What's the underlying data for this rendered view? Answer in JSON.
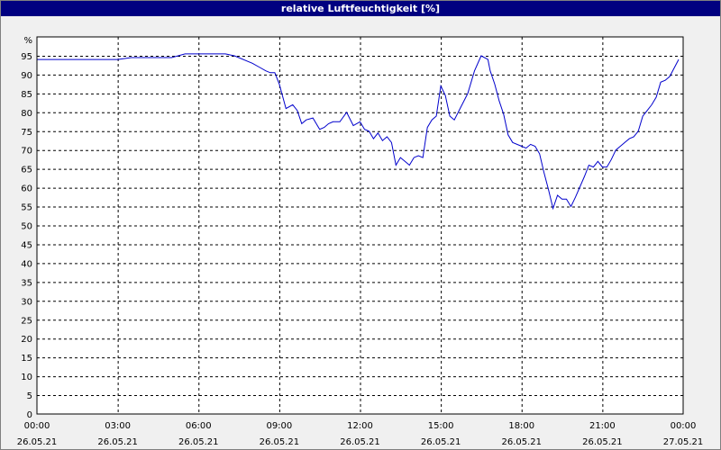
{
  "window": {
    "title": "relative Luftfeuchtigkeit [%]"
  },
  "colors": {
    "title_bg": "#000080",
    "plot_bg": "#ffffff",
    "grid": "#000000",
    "line": "#0000cc"
  },
  "chart_data": {
    "type": "line",
    "title": "relative Luftfeuchtigkeit [%]",
    "ylabel_unit": "%",
    "ylim": [
      0,
      100
    ],
    "xlim": [
      "26.05.21 00:00",
      "27.05.21 00:00"
    ],
    "grid": true,
    "y_ticks": [
      "0",
      "5",
      "10",
      "15",
      "20",
      "25",
      "30",
      "35",
      "40",
      "45",
      "50",
      "55",
      "60",
      "65",
      "70",
      "75",
      "80",
      "85",
      "90",
      "95"
    ],
    "x_ticks": [
      {
        "time": "00:00",
        "date": "26.05.21"
      },
      {
        "time": "03:00",
        "date": "26.05.21"
      },
      {
        "time": "06:00",
        "date": "26.05.21"
      },
      {
        "time": "09:00",
        "date": "26.05.21"
      },
      {
        "time": "12:00",
        "date": "26.05.21"
      },
      {
        "time": "15:00",
        "date": "26.05.21"
      },
      {
        "time": "18:00",
        "date": "26.05.21"
      },
      {
        "time": "21:00",
        "date": "26.05.21"
      },
      {
        "time": "00:00",
        "date": "27.05.21"
      }
    ],
    "series": [
      {
        "x": [
          "00:00",
          "01:00",
          "02:00",
          "03:00",
          "03:30",
          "05:00",
          "05:30",
          "06:00",
          "07:00",
          "07:20",
          "08:00",
          "08:15",
          "08:30",
          "08:40",
          "08:50",
          "09:00",
          "09:15",
          "09:30",
          "09:40",
          "09:50",
          "10:00",
          "10:15",
          "10:30",
          "10:40",
          "10:50",
          "11:00",
          "11:15",
          "11:30",
          "11:45",
          "12:00",
          "12:10",
          "12:20",
          "12:30",
          "12:40",
          "12:50",
          "13:00",
          "13:10",
          "13:20",
          "13:30",
          "13:40",
          "13:50",
          "14:00",
          "14:10",
          "14:20",
          "14:30",
          "14:40",
          "14:50",
          "15:00",
          "15:10",
          "15:20",
          "15:30",
          "16:00",
          "16:15",
          "16:30",
          "16:45",
          "16:50",
          "17:00",
          "17:10",
          "17:20",
          "17:30",
          "17:40",
          "18:00",
          "18:10",
          "18:20",
          "18:30",
          "18:40",
          "18:50",
          "19:00",
          "19:10",
          "19:20",
          "19:30",
          "19:40",
          "19:50",
          "20:00",
          "20:20",
          "20:30",
          "20:40",
          "20:50",
          "21:00",
          "21:10",
          "21:20",
          "21:30",
          "21:40",
          "21:50",
          "22:00",
          "22:10",
          "22:20",
          "22:30",
          "22:40",
          "22:50",
          "23:00",
          "23:10",
          "23:20",
          "23:30",
          "23:50"
        ],
        "y": [
          94,
          94,
          94,
          94,
          94.5,
          94.5,
          95.5,
          95.5,
          95.5,
          95,
          93,
          92,
          91,
          90.5,
          90.5,
          87.5,
          81,
          82,
          80.5,
          77,
          78,
          78.5,
          75.5,
          76,
          77,
          77.5,
          77.5,
          80,
          76.5,
          77.5,
          75.5,
          75,
          73,
          74.5,
          72.5,
          73.5,
          72,
          66,
          68,
          67,
          66,
          68,
          68.5,
          68,
          76,
          78,
          79,
          87,
          84.5,
          79,
          78,
          85,
          91,
          95,
          94,
          91,
          87.5,
          83,
          79.5,
          74,
          72,
          71,
          70.5,
          71.5,
          71,
          69,
          64,
          59.5,
          54.5,
          58,
          57,
          57,
          55,
          57.5,
          63,
          66,
          65.5,
          67,
          65.5,
          65.5,
          67.5,
          70,
          71,
          72,
          73,
          73.5,
          75,
          79,
          80.5,
          82,
          84,
          88,
          88.5,
          89.5,
          94
        ]
      }
    ]
  }
}
